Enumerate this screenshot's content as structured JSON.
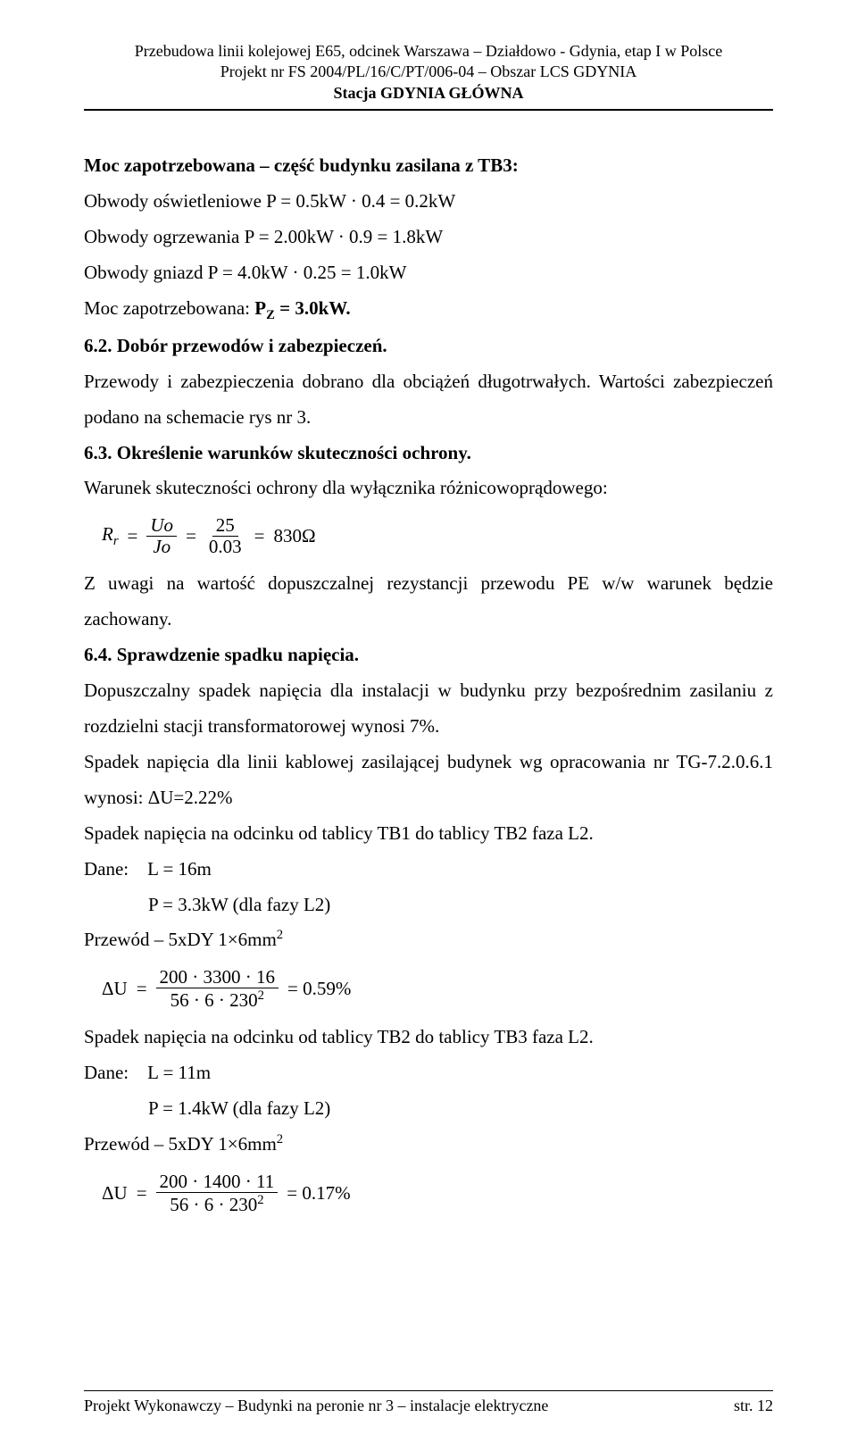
{
  "header": {
    "line1": "Przebudowa linii kolejowej E65, odcinek Warszawa – Działdowo - Gdynia, etap I w Polsce",
    "line2": "Projekt nr FS 2004/PL/16/C/PT/006-04 – Obszar LCS GDYNIA",
    "line3": "Stacja GDYNIA GŁÓWNA"
  },
  "sec0": {
    "title": "Moc zapotrzebowana – część budynku zasilana z TB3:",
    "l1": "Obwody oświetleniowe P = 0.5kW · 0.4 = 0.2kW",
    "l2": "Obwody ogrzewania P = 2.00kW · 0.9 = 1.8kW",
    "l3": "Obwody gniazd P = 4.0kW · 0.25 = 1.0kW",
    "l4a": "Moc zapotrzebowana: ",
    "l4b": "P",
    "l4sub": "Z",
    "l4c": " = 3.0kW."
  },
  "sec62": {
    "head": "6.2.  Dobór przewodów i zabezpieczeń.",
    "p1": "Przewody i zabezpieczenia dobrano dla obciążeń długotrwałych. Wartości zabezpieczeń podano na schemacie rys nr 3."
  },
  "sec63": {
    "head": "6.3.  Określenie warunków skuteczności ochrony.",
    "p1": "Warunek skuteczności ochrony dla wyłącznika różnicowoprądowego:",
    "eq": {
      "R": "R",
      "rsub": "r",
      "eq1": "=",
      "Uo": "Uo",
      "Jo": "Jo",
      "eq2": "=",
      "n25": "25",
      "d003": "0.03",
      "eq3": "=",
      "val": "830Ω"
    },
    "p2": "Z uwagi na wartość dopuszczalnej rezystancji przewodu PE w/w warunek będzie zachowany."
  },
  "sec64": {
    "head": "6.4.  Sprawdzenie spadku napięcia.",
    "p1": "Dopuszczalny spadek napięcia dla instalacji w budynku przy bezpośrednim zasilaniu z rozdzielni stacji transformatorowej wynosi 7%.",
    "p2": "Spadek napięcia dla linii kablowej zasilającej budynek wg opracowania nr TG-7.2.0.6.1 wynosi: ΔU=2.22%",
    "p3": "Spadek napięcia na odcinku od tablicy TB1 do tablicy TB2 faza L2.",
    "d1a": "Dane:",
    "d1b": "L = 16m",
    "d1c": "P = 3.3kW (dla fazy L2)",
    "wire1a": "Przewód – 5xDY 1×6mm",
    "sq": "2",
    "eq1": {
      "dU": "ΔU",
      "eq": "=",
      "num": "200 · 3300 · 16",
      "den": "56 · 6 · 230",
      "den_exp": "2",
      "res": "= 0.59%"
    },
    "p4": "Spadek napięcia na odcinku od tablicy TB2 do tablicy TB3 faza L2.",
    "d2a": "Dane:",
    "d2b": "L = 11m",
    "d2c": "P = 1.4kW (dla fazy L2)",
    "wire2a": "Przewód – 5xDY 1×6mm",
    "eq2": {
      "dU": "ΔU",
      "eq": "=",
      "num": "200 · 1400 · 11",
      "den": "56 · 6 · 230",
      "den_exp": "2",
      "res": "= 0.17%"
    }
  },
  "footer": {
    "left": "Projekt Wykonawczy – Budynki na peronie nr 3 – instalacje elektryczne",
    "right": "str. 12"
  }
}
